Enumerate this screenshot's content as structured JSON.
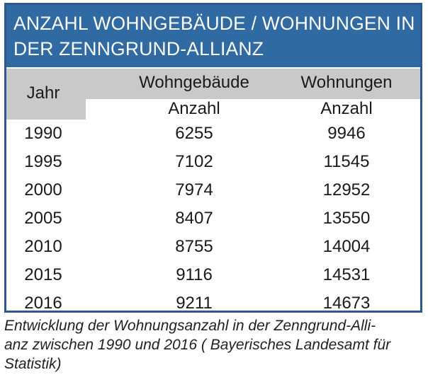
{
  "title": {
    "line1": "ANZAHL WOHNGEBÄUDE / WOHNUNGEN  IN",
    "line2": "DER ZENNGRUND-ALLIANZ"
  },
  "colors": {
    "title_bg": "#2f6aa3",
    "border": "#2a5a8c",
    "header_bg": "#c9c9c9"
  },
  "chart_data": {
    "type": "table",
    "title": "ANZAHL WOHNGEBÄUDE / WOHNUNGEN  IN DER ZENNGRUND-ALLIANZ",
    "columns": [
      {
        "header": "Jahr",
        "unit": ""
      },
      {
        "header": "Wohngebäude",
        "unit": "Anzahl"
      },
      {
        "header": "Wohnungen",
        "unit": "Anzahl"
      }
    ],
    "rows": [
      [
        "1990",
        "6255",
        "9946"
      ],
      [
        "1995",
        "7102",
        "11545"
      ],
      [
        "2000",
        "7974",
        "12952"
      ],
      [
        "2005",
        "8407",
        "13550"
      ],
      [
        "2010",
        "8755",
        "14004"
      ],
      [
        "2015",
        "9116",
        "14531"
      ],
      [
        "2016",
        "9211",
        "14673"
      ]
    ]
  },
  "caption": {
    "line1": "Entwicklung der Wohnungsanzahl in der Zenngrund-Alli-",
    "line2": "anz zwischen 1990 und 2016 ( Bayerisches Landesamt für",
    "line3": "Statistik)"
  }
}
